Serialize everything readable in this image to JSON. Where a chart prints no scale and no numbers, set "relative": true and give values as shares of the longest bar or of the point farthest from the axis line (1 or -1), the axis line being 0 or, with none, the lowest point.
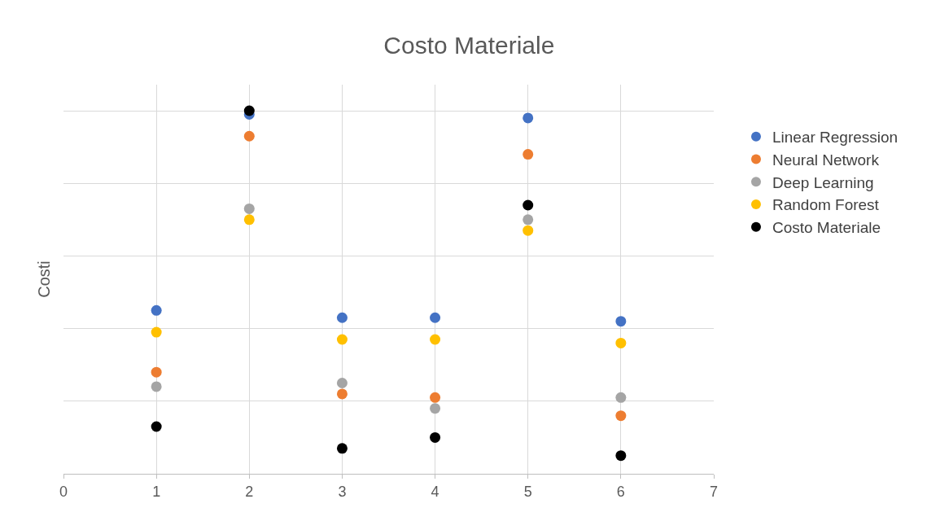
{
  "chart_data": {
    "type": "scatter",
    "title": "Costo Materiale",
    "ylabel": "Costi",
    "relative": true,
    "x": [
      1,
      2,
      3,
      4,
      5,
      6
    ],
    "xlim": [
      0,
      7
    ],
    "xticks": [
      0,
      1,
      2,
      3,
      4,
      5,
      6,
      7
    ],
    "series": [
      {
        "name": "Linear Regression",
        "color": "#4472c4",
        "values": [
          0.45,
          0.99,
          0.43,
          0.43,
          0.98,
          0.42
        ]
      },
      {
        "name": "Neural Network",
        "color": "#ed7d31",
        "values": [
          0.28,
          0.93,
          0.22,
          0.21,
          0.88,
          0.16
        ]
      },
      {
        "name": "Deep Learning",
        "color": "#a5a5a5",
        "values": [
          0.24,
          0.73,
          0.25,
          0.18,
          0.7,
          0.21
        ]
      },
      {
        "name": "Random Forest",
        "color": "#ffc000",
        "values": [
          0.39,
          0.7,
          0.37,
          0.37,
          0.67,
          0.36
        ]
      },
      {
        "name": "Costo Materiale",
        "color": "#000000",
        "values": [
          0.13,
          1.0,
          0.07,
          0.1,
          0.74,
          0.05
        ]
      }
    ],
    "grid": true,
    "legend": "right",
    "marker": "circle"
  }
}
